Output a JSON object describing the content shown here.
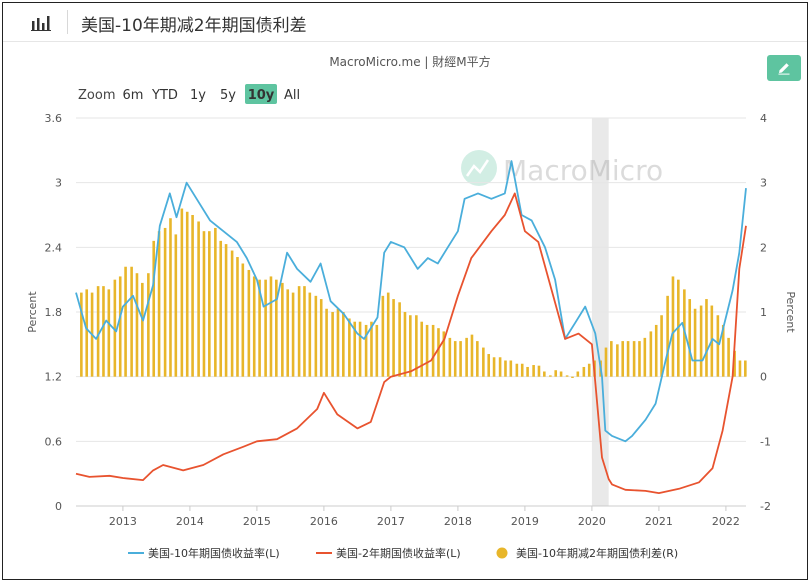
{
  "header": {
    "title": "美国-10年期减2年期国债利差",
    "chart_icon": "bar-chart-icon",
    "edit_icon": "pencil-icon"
  },
  "source_label": "MacroMicro.me | 財經M平方",
  "watermark": "MacroMicro",
  "zoom": {
    "label": "Zoom",
    "options": [
      "6m",
      "YTD",
      "1y",
      "5y",
      "10y",
      "All"
    ],
    "selected": "10y"
  },
  "chart_data": {
    "type": "line",
    "xlim": [
      2012.3,
      2022.3
    ],
    "x_ticks": [
      "2013",
      "2014",
      "2015",
      "2016",
      "2017",
      "2018",
      "2019",
      "2020",
      "2021",
      "2022"
    ],
    "left_axis": {
      "label": "Percent",
      "ylim": [
        0,
        3.6
      ],
      "ticks": [
        "0",
        "0.6",
        "1.2",
        "1.8",
        "2.4",
        "3",
        "3.6"
      ]
    },
    "right_axis": {
      "label": "Percent",
      "ylim": [
        -2,
        4
      ],
      "ticks": [
        "-2",
        "-1",
        "0",
        "1",
        "2",
        "3",
        "4"
      ]
    },
    "recession_band": [
      2020.0,
      2020.25
    ],
    "series": [
      {
        "name": "美国-10年期国债收益率(L)",
        "axis": "left",
        "color": "#4aaedb",
        "kind": "line",
        "x": [
          2012.3,
          2012.45,
          2012.6,
          2012.75,
          2012.9,
          2013.0,
          2013.15,
          2013.3,
          2013.45,
          2013.55,
          2013.7,
          2013.8,
          2013.95,
          2014.1,
          2014.3,
          2014.5,
          2014.7,
          2014.85,
          2015.0,
          2015.1,
          2015.3,
          2015.45,
          2015.6,
          2015.8,
          2015.95,
          2016.1,
          2016.3,
          2016.5,
          2016.6,
          2016.8,
          2016.9,
          2017.0,
          2017.2,
          2017.4,
          2017.55,
          2017.7,
          2017.85,
          2018.0,
          2018.1,
          2018.3,
          2018.5,
          2018.7,
          2018.8,
          2018.95,
          2019.1,
          2019.3,
          2019.45,
          2019.6,
          2019.75,
          2019.9,
          2020.05,
          2020.15,
          2020.2,
          2020.3,
          2020.5,
          2020.6,
          2020.8,
          2020.95,
          2021.1,
          2021.2,
          2021.35,
          2021.5,
          2021.65,
          2021.8,
          2021.9,
          2022.0,
          2022.1,
          2022.2,
          2022.3
        ],
        "y": [
          1.98,
          1.65,
          1.55,
          1.72,
          1.62,
          1.85,
          1.95,
          1.72,
          2.05,
          2.6,
          2.9,
          2.68,
          3.0,
          2.85,
          2.65,
          2.55,
          2.45,
          2.3,
          2.1,
          1.85,
          1.92,
          2.35,
          2.2,
          2.08,
          2.25,
          1.9,
          1.78,
          1.6,
          1.55,
          1.75,
          2.35,
          2.45,
          2.4,
          2.2,
          2.3,
          2.25,
          2.4,
          2.55,
          2.85,
          2.9,
          2.85,
          2.9,
          3.2,
          2.7,
          2.65,
          2.4,
          2.1,
          1.55,
          1.7,
          1.85,
          1.6,
          1.2,
          0.7,
          0.65,
          0.6,
          0.65,
          0.8,
          0.95,
          1.35,
          1.6,
          1.7,
          1.35,
          1.35,
          1.55,
          1.5,
          1.75,
          2.0,
          2.35,
          2.95
        ]
      },
      {
        "name": "美国-2年期国债收益率(L)",
        "axis": "left",
        "color": "#e8532f",
        "kind": "line",
        "x": [
          2012.3,
          2012.5,
          2012.8,
          2013.0,
          2013.3,
          2013.45,
          2013.6,
          2013.9,
          2014.2,
          2014.5,
          2014.8,
          2015.0,
          2015.3,
          2015.6,
          2015.9,
          2016.0,
          2016.2,
          2016.5,
          2016.7,
          2016.9,
          2017.0,
          2017.3,
          2017.6,
          2017.8,
          2018.0,
          2018.2,
          2018.5,
          2018.7,
          2018.85,
          2019.0,
          2019.2,
          2019.4,
          2019.6,
          2019.8,
          2020.0,
          2020.15,
          2020.25,
          2020.3,
          2020.5,
          2020.8,
          2021.0,
          2021.3,
          2021.6,
          2021.8,
          2021.95,
          2022.1,
          2022.2,
          2022.3
        ],
        "y": [
          0.3,
          0.27,
          0.28,
          0.26,
          0.24,
          0.33,
          0.38,
          0.33,
          0.38,
          0.48,
          0.55,
          0.6,
          0.62,
          0.72,
          0.9,
          1.05,
          0.85,
          0.72,
          0.78,
          1.15,
          1.2,
          1.25,
          1.35,
          1.55,
          1.95,
          2.3,
          2.55,
          2.7,
          2.9,
          2.55,
          2.45,
          2.0,
          1.55,
          1.6,
          1.5,
          0.45,
          0.25,
          0.2,
          0.15,
          0.14,
          0.12,
          0.16,
          0.22,
          0.35,
          0.7,
          1.2,
          2.2,
          2.6
        ]
      },
      {
        "name": "美国-10年期减2年期国债利差(R)",
        "axis": "right",
        "color": "#e8b62a",
        "kind": "bar",
        "x": [
          2012.38,
          2012.46,
          2012.54,
          2012.63,
          2012.71,
          2012.79,
          2012.88,
          2012.96,
          2013.04,
          2013.13,
          2013.21,
          2013.29,
          2013.38,
          2013.46,
          2013.54,
          2013.63,
          2013.71,
          2013.79,
          2013.88,
          2013.96,
          2014.04,
          2014.13,
          2014.21,
          2014.29,
          2014.38,
          2014.46,
          2014.54,
          2014.63,
          2014.71,
          2014.79,
          2014.88,
          2014.96,
          2015.04,
          2015.13,
          2015.21,
          2015.29,
          2015.38,
          2015.46,
          2015.54,
          2015.63,
          2015.71,
          2015.79,
          2015.88,
          2015.96,
          2016.04,
          2016.13,
          2016.21,
          2016.29,
          2016.38,
          2016.46,
          2016.54,
          2016.63,
          2016.71,
          2016.79,
          2016.88,
          2016.96,
          2017.04,
          2017.13,
          2017.21,
          2017.29,
          2017.38,
          2017.46,
          2017.54,
          2017.63,
          2017.71,
          2017.79,
          2017.88,
          2017.96,
          2018.04,
          2018.13,
          2018.21,
          2018.29,
          2018.38,
          2018.46,
          2018.54,
          2018.63,
          2018.71,
          2018.79,
          2018.88,
          2018.96,
          2019.04,
          2019.13,
          2019.21,
          2019.29,
          2019.38,
          2019.46,
          2019.54,
          2019.63,
          2019.71,
          2019.79,
          2019.88,
          2019.96,
          2020.04,
          2020.13,
          2020.21,
          2020.29,
          2020.38,
          2020.46,
          2020.54,
          2020.63,
          2020.71,
          2020.79,
          2020.88,
          2020.96,
          2021.04,
          2021.13,
          2021.21,
          2021.29,
          2021.38,
          2021.46,
          2021.54,
          2021.63,
          2021.71,
          2021.79,
          2021.88,
          2021.96,
          2022.04,
          2022.13,
          2022.21,
          2022.29
        ],
        "y": [
          1.3,
          1.35,
          1.3,
          1.4,
          1.4,
          1.35,
          1.5,
          1.55,
          1.7,
          1.7,
          1.6,
          1.45,
          1.6,
          2.1,
          2.25,
          2.3,
          2.45,
          2.2,
          2.6,
          2.55,
          2.5,
          2.4,
          2.25,
          2.25,
          2.3,
          2.1,
          2.05,
          1.95,
          1.85,
          1.75,
          1.65,
          1.55,
          1.5,
          1.5,
          1.55,
          1.5,
          1.45,
          1.35,
          1.3,
          1.4,
          1.4,
          1.3,
          1.25,
          1.2,
          1.05,
          1.0,
          1.05,
          1.0,
          0.9,
          0.85,
          0.85,
          0.8,
          0.85,
          0.8,
          1.25,
          1.3,
          1.2,
          1.15,
          1.0,
          0.95,
          0.95,
          0.85,
          0.8,
          0.8,
          0.75,
          0.7,
          0.6,
          0.55,
          0.55,
          0.6,
          0.65,
          0.55,
          0.45,
          0.35,
          0.3,
          0.3,
          0.25,
          0.25,
          0.2,
          0.2,
          0.15,
          0.18,
          0.17,
          0.08,
          0.02,
          0.1,
          0.08,
          0.02,
          -0.02,
          0.08,
          0.15,
          0.2,
          0.25,
          0.25,
          0.45,
          0.55,
          0.5,
          0.55,
          0.55,
          0.55,
          0.55,
          0.6,
          0.7,
          0.8,
          0.95,
          1.25,
          1.55,
          1.5,
          1.35,
          1.2,
          1.05,
          1.1,
          1.2,
          1.1,
          0.95,
          0.8,
          0.6,
          0.4,
          0.25,
          0.25
        ]
      }
    ]
  },
  "legend": [
    {
      "label": "美国-10年期国债收益率(L)",
      "color": "#4aaedb",
      "marker": "line"
    },
    {
      "label": "美国-2年期国债收益率(L)",
      "color": "#e8532f",
      "marker": "line"
    },
    {
      "label": "美国-10年期减2年期国债利差(R)",
      "color": "#e8b62a",
      "marker": "circle"
    }
  ]
}
